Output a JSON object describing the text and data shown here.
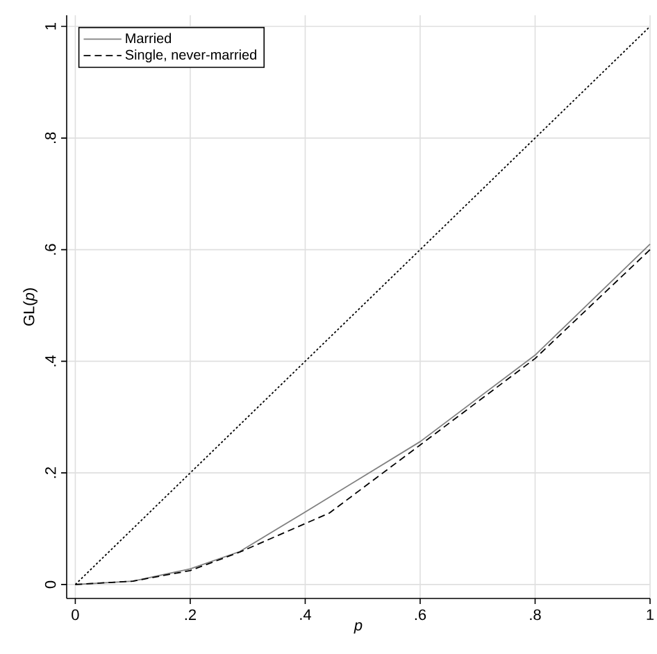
{
  "chart_data": {
    "type": "line",
    "xlabel": "*p*",
    "ylabel": "GL(*p*)",
    "xlim": [
      -0.015,
      1.0
    ],
    "ylim": [
      -0.025,
      1.02
    ],
    "xticks": [
      0,
      {
        "value": 0.2,
        "label": ".2"
      },
      {
        "value": 0.4,
        "label": ".4"
      },
      {
        "value": 0.6,
        "label": ".6"
      },
      {
        "value": 0.8,
        "label": ".8"
      },
      1
    ],
    "yticks": [
      0,
      {
        "value": 0.2,
        "label": ".2"
      },
      {
        "value": 0.4,
        "label": ".4"
      },
      {
        "value": 0.6,
        "label": ".6"
      },
      {
        "value": 0.8,
        "label": ".8"
      },
      1
    ],
    "grid": true,
    "legend": "top left",
    "series": [
      {
        "name": "Married",
        "color": "#808080",
        "line_style": "solid",
        "x": [
          0,
          0.1,
          0.2,
          0.286,
          0.4,
          0.6,
          0.8,
          1
        ],
        "values": [
          0,
          0.006,
          0.028,
          0.059,
          0.13,
          0.256,
          0.411,
          0.61
        ]
      },
      {
        "name": "Single, never-married",
        "color": "#000000",
        "line_style": "dashed",
        "x": [
          0,
          0.1,
          0.2,
          0.286,
          0.442,
          0.6,
          0.8,
          1
        ],
        "values": [
          0,
          0.006,
          0.025,
          0.058,
          0.128,
          0.25,
          0.405,
          0.6
        ]
      },
      {
        "color": "#000000",
        "line_style": "dotted",
        "x": [
          0,
          1
        ],
        "values": [
          0,
          1
        ]
      }
    ]
  }
}
